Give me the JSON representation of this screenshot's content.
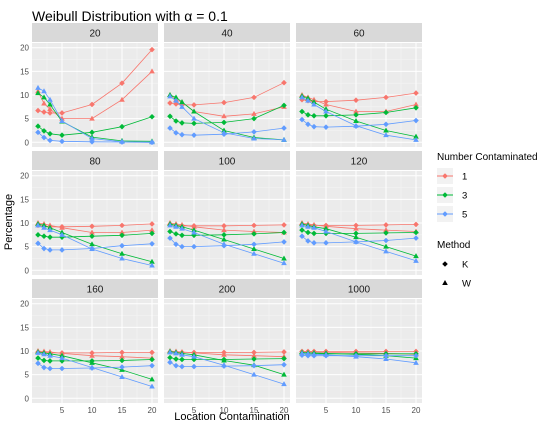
{
  "chart_data": {
    "type": "line",
    "title": "Weibull Distribution with α = 0.1",
    "xlabel": "Location Contamination",
    "ylabel": "Percentage",
    "x": [
      1,
      2,
      3,
      5,
      10,
      15,
      20
    ],
    "x_ticks": [
      5,
      10,
      15,
      20
    ],
    "y_ticks": [
      0,
      5,
      10,
      15,
      20
    ],
    "xlim": [
      0,
      21
    ],
    "ylim": [
      -1,
      21
    ],
    "grid": true,
    "legend_position": "right",
    "legend": {
      "color_title": "Number Contaminated",
      "color_labels": [
        "1",
        "3",
        "5"
      ],
      "shape_title": "Method",
      "shape_labels": [
        "K",
        "W"
      ]
    },
    "colors": {
      "1": "#F8766D",
      "3": "#00BA38",
      "5": "#619CFF"
    },
    "panels": [
      {
        "label": "20",
        "series": [
          {
            "num": "1",
            "method": "K",
            "values": [
              6.7,
              6.4,
              6.2,
              6.2,
              8.0,
              12.5,
              19.6
            ]
          },
          {
            "num": "1",
            "method": "W",
            "values": [
              10.8,
              8.2,
              7.0,
              5.0,
              5.0,
              9.0,
              15.0
            ]
          },
          {
            "num": "3",
            "method": "K",
            "values": [
              3.4,
              2.4,
              1.8,
              1.5,
              2.1,
              3.3,
              5.4
            ]
          },
          {
            "num": "3",
            "method": "W",
            "values": [
              10.4,
              9.5,
              8.0,
              4.4,
              1.1,
              0.3,
              0.2
            ]
          },
          {
            "num": "5",
            "method": "K",
            "values": [
              2.1,
              1.0,
              0.4,
              0.2,
              0.1,
              0.05,
              0.0
            ]
          },
          {
            "num": "5",
            "method": "W",
            "values": [
              11.5,
              10.8,
              9.0,
              4.5,
              0.8,
              0.1,
              0.0
            ]
          }
        ]
      },
      {
        "label": "40",
        "series": [
          {
            "num": "1",
            "method": "K",
            "values": [
              8.3,
              8.1,
              7.9,
              7.9,
              8.4,
              9.5,
              12.6
            ]
          },
          {
            "num": "1",
            "method": "W",
            "values": [
              10.0,
              9.0,
              8.5,
              6.5,
              5.5,
              6.0,
              7.5
            ]
          },
          {
            "num": "3",
            "method": "K",
            "values": [
              5.5,
              4.5,
              4.1,
              4.0,
              4.2,
              5.0,
              7.8
            ]
          },
          {
            "num": "3",
            "method": "W",
            "values": [
              10.0,
              9.5,
              8.5,
              6.5,
              2.5,
              1.0,
              0.5
            ]
          },
          {
            "num": "5",
            "method": "K",
            "values": [
              3.0,
              2.0,
              1.6,
              1.5,
              1.7,
              2.2,
              3.0
            ]
          },
          {
            "num": "5",
            "method": "W",
            "values": [
              9.7,
              8.8,
              7.5,
              5.0,
              2.0,
              0.8,
              0.5
            ]
          }
        ]
      },
      {
        "label": "60",
        "series": [
          {
            "num": "1",
            "method": "K",
            "values": [
              9.0,
              8.8,
              8.6,
              8.6,
              8.9,
              9.5,
              10.4
            ]
          },
          {
            "num": "1",
            "method": "W",
            "values": [
              10.0,
              9.5,
              9.0,
              8.0,
              6.5,
              6.5,
              8.0
            ]
          },
          {
            "num": "3",
            "method": "K",
            "values": [
              6.5,
              5.8,
              5.6,
              5.6,
              5.8,
              6.3,
              7.3
            ]
          },
          {
            "num": "3",
            "method": "W",
            "values": [
              9.8,
              9.3,
              8.5,
              7.0,
              4.5,
              2.5,
              1.2
            ]
          },
          {
            "num": "5",
            "method": "K",
            "values": [
              4.8,
              3.8,
              3.3,
              3.2,
              3.4,
              3.8,
              4.6
            ]
          },
          {
            "num": "5",
            "method": "W",
            "values": [
              9.5,
              8.8,
              8.0,
              6.5,
              3.5,
              1.5,
              0.5
            ]
          }
        ]
      },
      {
        "label": "80",
        "series": [
          {
            "num": "1",
            "method": "K",
            "values": [
              9.5,
              9.3,
              9.2,
              9.2,
              9.3,
              9.5,
              9.8
            ]
          },
          {
            "num": "1",
            "method": "W",
            "values": [
              10.0,
              9.8,
              9.5,
              9.0,
              8.0,
              8.0,
              8.5
            ]
          },
          {
            "num": "3",
            "method": "K",
            "values": [
              7.5,
              7.2,
              7.0,
              7.0,
              7.2,
              7.4,
              7.8
            ]
          },
          {
            "num": "3",
            "method": "W",
            "values": [
              9.8,
              9.5,
              9.0,
              8.0,
              5.5,
              3.5,
              1.8
            ]
          },
          {
            "num": "5",
            "method": "K",
            "values": [
              5.7,
              4.6,
              4.3,
              4.3,
              4.6,
              5.2,
              5.6
            ]
          },
          {
            "num": "5",
            "method": "W",
            "values": [
              9.5,
              9.0,
              8.5,
              7.5,
              4.5,
              2.5,
              1.0
            ]
          }
        ]
      },
      {
        "label": "100",
        "series": [
          {
            "num": "1",
            "method": "K",
            "values": [
              9.7,
              9.5,
              9.4,
              9.4,
              9.4,
              9.5,
              9.6
            ]
          },
          {
            "num": "1",
            "method": "W",
            "values": [
              10.0,
              9.8,
              9.6,
              9.2,
              8.5,
              8.2,
              8.0
            ]
          },
          {
            "num": "3",
            "method": "K",
            "values": [
              8.2,
              7.7,
              7.4,
              7.4,
              7.5,
              7.7,
              8.0
            ]
          },
          {
            "num": "3",
            "method": "W",
            "values": [
              9.8,
              9.5,
              9.2,
              8.5,
              6.5,
              4.5,
              2.5
            ]
          },
          {
            "num": "5",
            "method": "K",
            "values": [
              6.8,
              5.5,
              5.0,
              5.0,
              5.2,
              5.5,
              6.0
            ]
          },
          {
            "num": "5",
            "method": "W",
            "values": [
              9.5,
              9.2,
              8.8,
              8.0,
              5.5,
              3.5,
              1.5
            ]
          }
        ]
      },
      {
        "label": "120",
        "series": [
          {
            "num": "1",
            "method": "K",
            "values": [
              9.7,
              9.6,
              9.5,
              9.5,
              9.5,
              9.6,
              9.7
            ]
          },
          {
            "num": "1",
            "method": "W",
            "values": [
              10.0,
              9.8,
              9.6,
              9.3,
              8.8,
              8.5,
              8.2
            ]
          },
          {
            "num": "3",
            "method": "K",
            "values": [
              8.5,
              8.0,
              7.8,
              7.8,
              7.8,
              7.9,
              8.0
            ]
          },
          {
            "num": "3",
            "method": "W",
            "values": [
              9.8,
              9.5,
              9.2,
              8.8,
              7.0,
              5.0,
              3.0
            ]
          },
          {
            "num": "5",
            "method": "K",
            "values": [
              7.2,
              6.2,
              5.8,
              5.8,
              6.0,
              6.3,
              6.8
            ]
          },
          {
            "num": "5",
            "method": "W",
            "values": [
              9.5,
              9.2,
              9.0,
              8.2,
              6.0,
              4.0,
              2.0
            ]
          }
        ]
      },
      {
        "label": "160",
        "series": [
          {
            "num": "1",
            "method": "K",
            "values": [
              9.8,
              9.7,
              9.6,
              9.6,
              9.6,
              9.7,
              9.7
            ]
          },
          {
            "num": "1",
            "method": "W",
            "values": [
              10.0,
              9.9,
              9.8,
              9.5,
              9.0,
              8.8,
              8.5
            ]
          },
          {
            "num": "3",
            "method": "K",
            "values": [
              8.5,
              8.0,
              7.9,
              7.9,
              7.9,
              8.0,
              8.2
            ]
          },
          {
            "num": "3",
            "method": "W",
            "values": [
              9.8,
              9.6,
              9.4,
              9.0,
              7.5,
              6.0,
              4.0
            ]
          },
          {
            "num": "5",
            "method": "K",
            "values": [
              7.4,
              6.5,
              6.3,
              6.3,
              6.4,
              6.6,
              6.9
            ]
          },
          {
            "num": "5",
            "method": "W",
            "values": [
              9.6,
              9.3,
              9.0,
              8.5,
              6.5,
              4.5,
              2.5
            ]
          }
        ]
      },
      {
        "label": "200",
        "series": [
          {
            "num": "1",
            "method": "K",
            "values": [
              9.8,
              9.7,
              9.7,
              9.7,
              9.7,
              9.7,
              9.8
            ]
          },
          {
            "num": "1",
            "method": "W",
            "values": [
              10.0,
              9.9,
              9.8,
              9.6,
              9.2,
              9.0,
              8.8
            ]
          },
          {
            "num": "3",
            "method": "K",
            "values": [
              8.6,
              8.3,
              8.2,
              8.2,
              8.2,
              8.3,
              8.4
            ]
          },
          {
            "num": "3",
            "method": "W",
            "values": [
              9.9,
              9.7,
              9.5,
              9.2,
              8.0,
              7.0,
              5.0
            ]
          },
          {
            "num": "5",
            "method": "K",
            "values": [
              7.6,
              6.9,
              6.7,
              6.7,
              6.8,
              6.9,
              7.1
            ]
          },
          {
            "num": "5",
            "method": "W",
            "values": [
              9.7,
              9.5,
              9.2,
              8.8,
              7.0,
              5.0,
              3.0
            ]
          }
        ]
      },
      {
        "label": "1000",
        "series": [
          {
            "num": "1",
            "method": "K",
            "values": [
              9.9,
              9.9,
              9.9,
              9.9,
              9.9,
              9.9,
              9.9
            ]
          },
          {
            "num": "1",
            "method": "W",
            "values": [
              9.8,
              9.8,
              9.8,
              9.7,
              9.6,
              9.5,
              9.3
            ]
          },
          {
            "num": "3",
            "method": "K",
            "values": [
              9.5,
              9.4,
              9.4,
              9.4,
              9.4,
              9.4,
              9.4
            ]
          },
          {
            "num": "3",
            "method": "W",
            "values": [
              9.7,
              9.6,
              9.6,
              9.5,
              9.3,
              9.0,
              8.5
            ]
          },
          {
            "num": "5",
            "method": "K",
            "values": [
              9.1,
              9.0,
              9.0,
              9.0,
              9.0,
              9.0,
              9.0
            ]
          },
          {
            "num": "5",
            "method": "W",
            "values": [
              9.5,
              9.4,
              9.3,
              9.2,
              8.8,
              8.3,
              7.5
            ]
          }
        ]
      }
    ]
  }
}
